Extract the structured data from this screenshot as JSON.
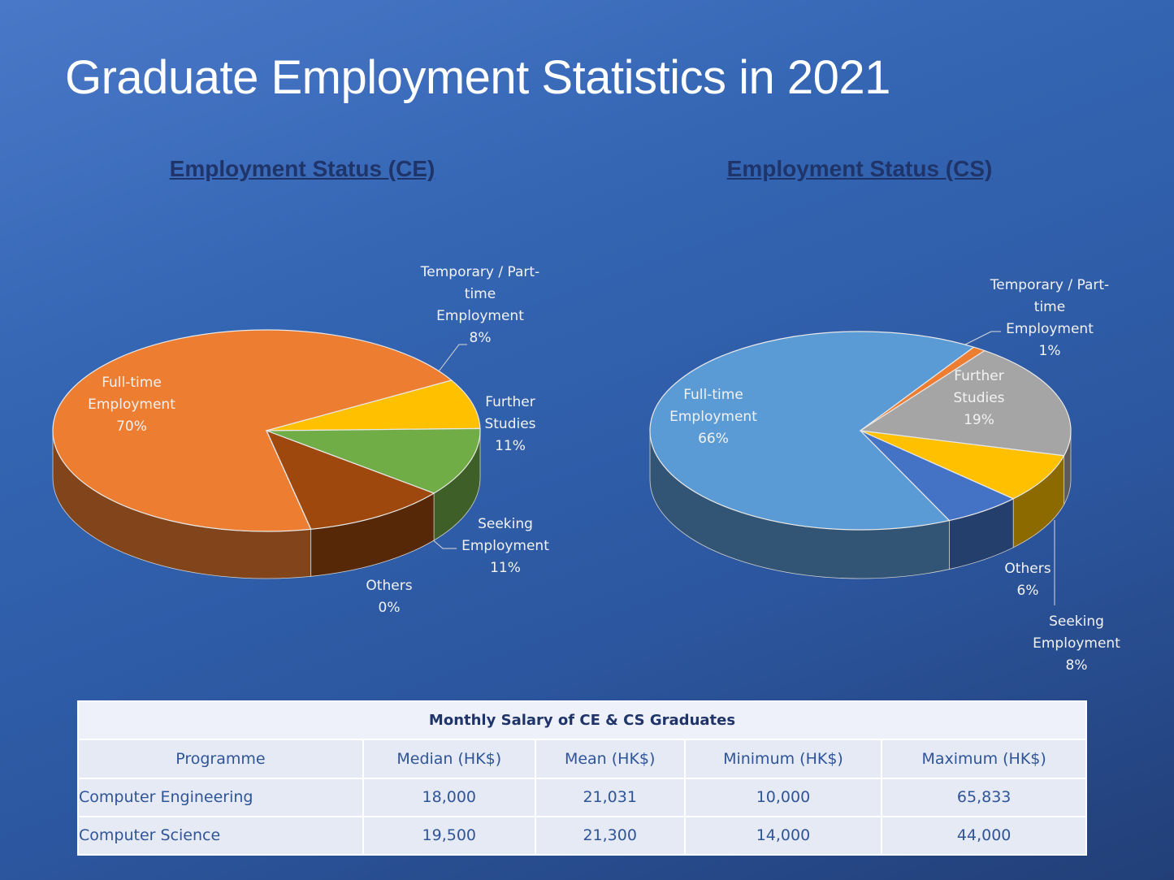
{
  "title": "Graduate Employment Statistics in 2021",
  "chart_data": [
    {
      "type": "pie3d",
      "title": "Employment Status (CE)",
      "categories": [
        "Full-time Employment",
        "Temporary / Part-time Employment",
        "Further Studies",
        "Seeking Employment",
        "Others"
      ],
      "values": [
        70,
        8,
        11,
        11,
        0
      ],
      "value_labels": [
        "70%",
        "8%",
        "11%",
        "11%",
        "0%"
      ],
      "colors": [
        "#ed7d31",
        "#ffc000",
        "#70ad47",
        "#9e480e",
        "#997300"
      ]
    },
    {
      "type": "pie3d",
      "title": "Employment Status (CS)",
      "categories": [
        "Full-time Employment",
        "Temporary / Part-time Employment",
        "Further Studies",
        "Seeking Employment",
        "Others"
      ],
      "values": [
        66,
        1,
        19,
        8,
        6
      ],
      "value_labels": [
        "66%",
        "1%",
        "19%",
        "8%",
        "6%"
      ],
      "colors": [
        "#5b9bd5",
        "#ed7d31",
        "#a5a5a5",
        "#ffc000",
        "#4472c4"
      ]
    }
  ],
  "table": {
    "title": "Monthly Salary of CE & CS Graduates",
    "header": [
      "Programme",
      "Median (HK$)",
      "Mean (HK$)",
      "Minimum (HK$)",
      "Maximum (HK$)"
    ],
    "rows": [
      [
        "Computer Engineering",
        "18,000",
        "21,031",
        "10,000",
        "65,833"
      ],
      [
        "Computer Science",
        "19,500",
        "21,300",
        "14,000",
        "44,000"
      ]
    ]
  }
}
